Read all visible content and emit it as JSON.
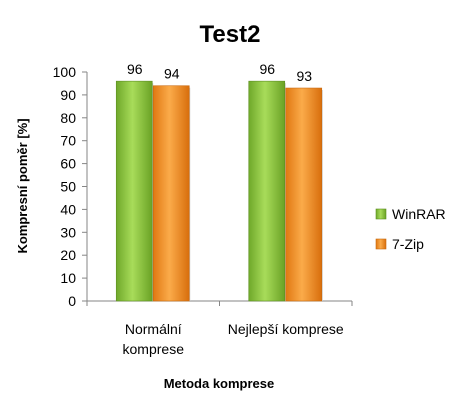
{
  "chart_data": {
    "type": "bar",
    "title": "Test2",
    "xlabel": "Metoda komprese",
    "ylabel": "Kompresní poměr [%]",
    "categories": [
      [
        "Normální",
        "komprese"
      ],
      [
        "Nejlepší komprese"
      ]
    ],
    "series": [
      {
        "name": "WinRAR",
        "values": [
          96,
          96
        ],
        "color": "#8cc63f"
      },
      {
        "name": "7-Zip",
        "values": [
          94,
          93
        ],
        "color": "#f7941d"
      }
    ],
    "ylim": [
      0,
      100
    ],
    "yticks": [
      0,
      10,
      20,
      30,
      40,
      50,
      60,
      70,
      80,
      90,
      100
    ],
    "grid": false,
    "legend_position": "right"
  }
}
